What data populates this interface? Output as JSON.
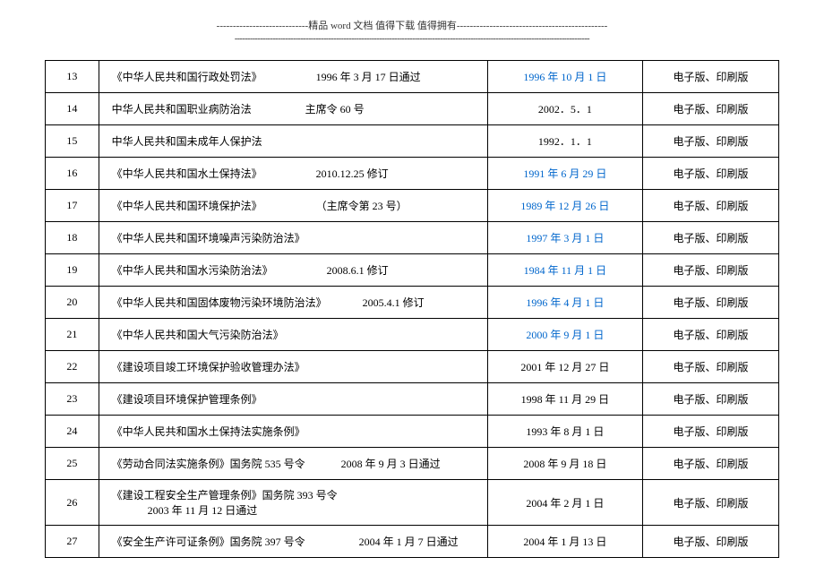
{
  "header": {
    "line": "----------------------------精品 word 文档  值得下载  值得拥有----------------------------------------------",
    "dashes": "--------------------------------------------------------------------------------------------------------------------------------------------"
  },
  "columns": {
    "num_width": 55,
    "name_width": 400,
    "date_width": 160,
    "type_width": 140
  },
  "rows": [
    {
      "num": "13",
      "name": "《中华人民共和国行政处罚法》",
      "sub": "1996 年 3 月 17 日通过",
      "date": "1996 年 10 月 1 日",
      "date_link": true,
      "type": "电子版、印刷版"
    },
    {
      "num": "14",
      "name": "中华人民共和国职业病防治法",
      "sub": "主席令 60 号",
      "date": "2002．5．1",
      "date_link": false,
      "type": "电子版、印刷版"
    },
    {
      "num": "15",
      "name": "中华人民共和国未成年人保护法",
      "sub": "",
      "date": "1992．1．1",
      "date_link": false,
      "type": "电子版、印刷版"
    },
    {
      "num": "16",
      "name": "《中华人民共和国水土保持法》",
      "sub": "2010.12.25 修订",
      "date": "1991 年 6 月 29 日",
      "date_link": true,
      "type": "电子版、印刷版"
    },
    {
      "num": "17",
      "name": "《中华人民共和国环境保护法》",
      "sub": "（主席令第 23 号）",
      "date": "1989 年 12 月 26 日",
      "date_link": true,
      "type": "电子版、印刷版"
    },
    {
      "num": "18",
      "name": "《中华人民共和国环境噪声污染防治法》",
      "sub": "",
      "date": "1997 年 3 月 1 日",
      "date_link": true,
      "type": "电子版、印刷版"
    },
    {
      "num": "19",
      "name": "《中华人民共和国水污染防治法》",
      "sub": "2008.6.1 修订",
      "date": "1984 年 11 月 1 日",
      "date_link": true,
      "type": "电子版、印刷版"
    },
    {
      "num": "20",
      "name": "《中华人民共和国固体废物污染环境防治法》",
      "sub": "2005.4.1 修订",
      "sub_close": true,
      "date": "1996 年 4 月 1 日",
      "date_link": true,
      "type": "电子版、印刷版"
    },
    {
      "num": "21",
      "name": "《中华人民共和国大气污染防治法》",
      "sub": "",
      "date": "2000 年 9 月 1 日",
      "date_link": true,
      "type": "电子版、印刷版"
    },
    {
      "num": "22",
      "name": "《建设项目竣工环境保护验收管理办法》",
      "sub": "",
      "date": "2001 年 12 月 27 日",
      "date_link": false,
      "type": "电子版、印刷版"
    },
    {
      "num": "23",
      "name": "《建设项目环境保护管理条例》",
      "sub": "",
      "date": "1998 年 11 月 29 日",
      "date_link": false,
      "type": "电子版、印刷版"
    },
    {
      "num": "24",
      "name": "《中华人民共和国水土保持法实施条例》",
      "sub": "",
      "date": "1993 年 8 月 1 日",
      "date_link": false,
      "type": "电子版、印刷版"
    },
    {
      "num": "25",
      "name": "《劳动合同法实施条例》国务院 535 号令",
      "sub": "2008 年 9 月 3 日通过",
      "sub_close": true,
      "date": "2008 年 9 月 18 日",
      "date_link": false,
      "type": "电子版、印刷版"
    },
    {
      "num": "26",
      "name": "《建设工程安全生产管理条例》国务院 393 号令",
      "sub": "2003 年 11 月 12 日通过",
      "sub_close": true,
      "date": "2004 年 2   月 1 日",
      "date_link": false,
      "type": "电子版、印刷版"
    },
    {
      "num": "27",
      "name": "《安全生产许可证条例》国务院 397 号令",
      "sub": "2004 年 1 月 7 日通过",
      "date": "2004 年 1 月 13 日",
      "date_link": false,
      "type": "电子版、印刷版"
    }
  ]
}
